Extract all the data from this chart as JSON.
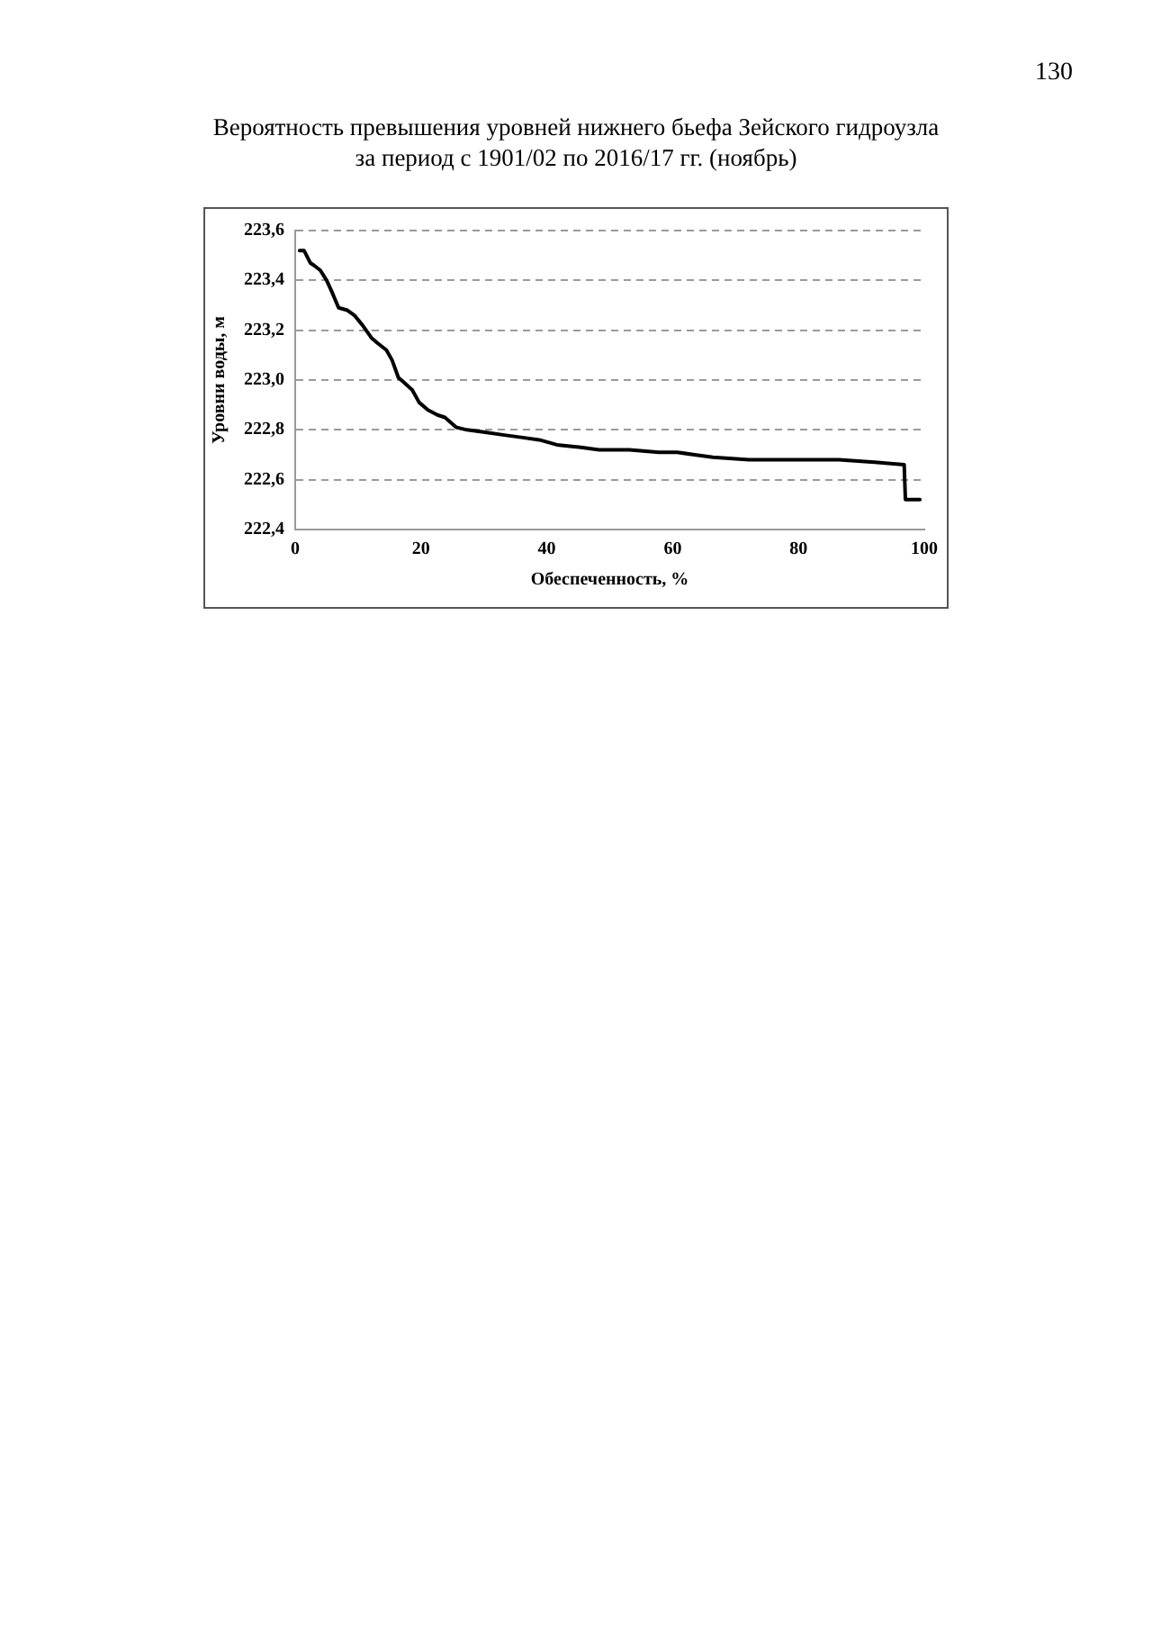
{
  "chart_data": {
    "type": "line",
    "title": "Вероятность превышения уровней нижнего бьефа Зейского гидроузла\nза период с 1901/02 по 2016/17 гг. (ноябрь)",
    "xlabel": "Обеспеченность, %",
    "ylabel": "Уровни воды, м",
    "annotations": [
      "130"
    ],
    "x": [
      0.7,
      1.4,
      2.4,
      3.0,
      4.0,
      5.0,
      5.9,
      6.9,
      8.3,
      9.4,
      10.7,
      12.1,
      13.0,
      14.5,
      15.4,
      16.4,
      17.3,
      18.6,
      19.7,
      21.1,
      22.6,
      23.8,
      25.6,
      27.3,
      30.2,
      33.0,
      35.9,
      38.8,
      41.6,
      45.4,
      48.3,
      53.1,
      57.8,
      60.7,
      63.5,
      66.4,
      72.1,
      78.8,
      86.4,
      92.1,
      96.8,
      97.0,
      99.3
    ],
    "series": [
      {
        "color": "#000000",
        "values": [
          223.52,
          223.52,
          223.47,
          223.46,
          223.44,
          223.4,
          223.35,
          223.29,
          223.28,
          223.26,
          223.22,
          223.17,
          223.15,
          223.12,
          223.08,
          223.01,
          222.99,
          222.96,
          222.91,
          222.88,
          222.86,
          222.85,
          222.81,
          222.8,
          222.79,
          222.78,
          222.77,
          222.76,
          222.74,
          222.73,
          222.72,
          222.72,
          222.71,
          222.71,
          222.7,
          222.69,
          222.68,
          222.68,
          222.68,
          222.67,
          222.66,
          222.52,
          222.52
        ]
      }
    ],
    "xlim": [
      0,
      100
    ],
    "xticks": [
      0,
      20,
      40,
      60,
      80,
      100
    ],
    "ylim": [
      222.4,
      223.6
    ],
    "yticks": [
      {
        "value": 222.4,
        "label": "222,4"
      },
      {
        "value": 222.6,
        "label": "222,6"
      },
      {
        "value": 222.8,
        "label": "222,8"
      },
      {
        "value": 223.0,
        "label": "223,0"
      },
      {
        "value": 223.2,
        "label": "223,2"
      },
      {
        "value": 223.4,
        "label": "223,4"
      },
      {
        "value": 223.6,
        "label": "223,6"
      }
    ],
    "grid": "y",
    "marker": "none",
    "line_style": "solid"
  }
}
